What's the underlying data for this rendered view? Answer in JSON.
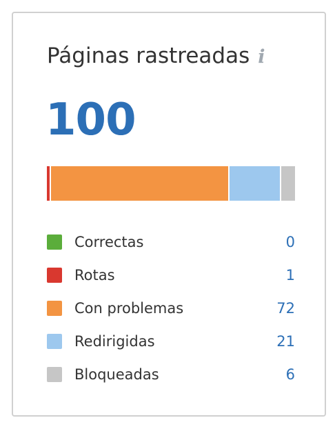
{
  "widget": {
    "title": "Páginas rastreadas",
    "info_icon": "info-icon",
    "info_glyph": "i",
    "total": "100"
  },
  "chart_data": {
    "type": "bar",
    "categories": [
      "Correctas",
      "Rotas",
      "Con problemas",
      "Redirigidas",
      "Bloqueadas"
    ],
    "values": [
      0,
      1,
      72,
      21,
      6
    ],
    "colors": [
      "#5bad3b",
      "#d9382f",
      "#f39442",
      "#9dc8ee",
      "#c6c6c6"
    ]
  },
  "legend": [
    {
      "label": "Correctas",
      "value": "0",
      "color": "#5bad3b"
    },
    {
      "label": "Rotas",
      "value": "1",
      "color": "#d9382f"
    },
    {
      "label": "Con problemas",
      "value": "72",
      "color": "#f39442"
    },
    {
      "label": "Redirigidas",
      "value": "21",
      "color": "#9dc8ee"
    },
    {
      "label": "Bloqueadas",
      "value": "6",
      "color": "#c6c6c6"
    }
  ]
}
